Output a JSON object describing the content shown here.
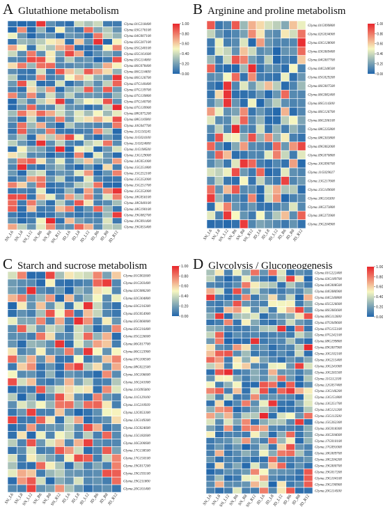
{
  "colors": {
    "low": "#2166ac",
    "mid": "#f7f7c0",
    "high": "#e8262c"
  },
  "color_scale": {
    "min": 0,
    "max": 1,
    "ticks": [
      "0.00",
      "0.20",
      "0.40",
      "0.60",
      "0.80",
      "1.00"
    ]
  },
  "samples": [
    "SN_L6",
    "SN_L8",
    "SN_L12",
    "SN_R6",
    "SN_R8",
    "SN_R12",
    "JD_L6",
    "JD_L8",
    "JD_L12",
    "JD_R6",
    "JD_R8",
    "JD_R12"
  ],
  "panels": [
    {
      "letter": "A",
      "title": "Glutathione metabolism",
      "genes": [
        "Glyma.01G218400",
        "Glyma.03G176100",
        "Glyma.04G007100",
        "Glyma.05G207100",
        "Glyma.05G240100",
        "Glyma.05G161600",
        "Glyma.05G114000",
        "Glyma.06G078400",
        "Glyma.06G114400",
        "Glyma.06G126700",
        "Glyma.07G140400",
        "Glyma.07G139700",
        "Glyma.07G139800",
        "Glyma.07G140700",
        "Glyma.07G139900",
        "Glyma.08G075200",
        "Glyma.08G116900",
        "Glyma.10G047700",
        "Glyma.11G150245",
        "Glyma.11G024100",
        "Glyma.11G024000",
        "Glyma.11G198500",
        "Glyma.13G129000",
        "Glyma.14G051000",
        "Glyma.15G251800",
        "Glyma.15G252100",
        "Glyma.15G252000",
        "Glyma.15G251700",
        "Glyma.15G252000",
        "Glyma.18G056100",
        "Glyma.18G040100",
        "Glyma.18G190100",
        "Glyma.19G082700",
        "Glyma.19G091400",
        "Glyma.19G055400"
      ]
    },
    {
      "letter": "B",
      "title": "Arginine and proline metabolism",
      "genes": [
        "Glyma.01G099800",
        "Glyma.02G034000",
        "Glyma.03G128000",
        "Glyma.03G069400",
        "Glyma.04G007700",
        "Glyma.04G248500",
        "Glyma.05G029200",
        "Glyma.06G007500",
        "Glyma.06G082400",
        "Glyma.06G114300",
        "Glyma.06G126700",
        "Glyma.06G206100",
        "Glyma.08G235800",
        "Glyma.08G303800",
        "Glyma.09G062000",
        "Glyma.09G070800",
        "Glyma.10G090700",
        "Glyma.11G029027",
        "Glyma.13G217600",
        "Glyma.15G149600",
        "Glyma.18G116300",
        "Glyma.18G273800",
        "Glyma.18G273900",
        "Glyma.19G204900"
      ]
    },
    {
      "letter": "C",
      "title": "Starch and sucrose metabolism",
      "genes": [
        "Glyma.01G002600",
        "Glyma.01G203400",
        "Glyma.02G086200",
        "Glyma.02G304800",
        "Glyma.03G216300",
        "Glyma.05G054900",
        "Glyma.05G060000",
        "Glyma.05G216400",
        "Glyma.05G226600",
        "Glyma.06G017700",
        "Glyma.06G123900",
        "Glyma.07G100500",
        "Glyma.08G022500",
        "Glyma.10G106600",
        "Glyma.10G241000",
        "Glyma.11G095600",
        "Glyma.11G129100",
        "Glyma.11G210939",
        "Glyma.12G053300",
        "Glyma.13G149300",
        "Glyma.15G024600",
        "Glyma.15G182600",
        "Glyma.16G200600",
        "Glyma.17G138500",
        "Glyma.17G150100",
        "Glyma.19G017200",
        "Glyma.19G193100",
        "Glyma.19G211800",
        "Glyma.20G101400"
      ]
    },
    {
      "letter": "D",
      "title": "Glycolysis / Gluconeogenesis",
      "genes": [
        "Glyma.01G222400",
        "Glyma.03G189700",
        "Glyma.04G008500",
        "Glyma.04G086900",
        "Glyma.04G240800",
        "Glyma.05G226600",
        "Glyma.06G083600",
        "Glyma.06G112600",
        "Glyma.07G049600",
        "Glyma.07G155100",
        "Glyma.07G242100",
        "Glyma.08G199800",
        "Glyma.09G007900",
        "Glyma.10G102100",
        "Glyma.10G215400",
        "Glyma.10G241000",
        "Glyma.10G265500",
        "Glyma.11G112100",
        "Glyma.12G057400",
        "Glyma.13G146200",
        "Glyma.13G151800",
        "Glyma.13G251700",
        "Glyma.14G121200",
        "Glyma.15G112500",
        "Glyma.15G262300",
        "Glyma.16G018300",
        "Glyma.16G204600",
        "Glyma.17G010100",
        "Glyma.17G091000",
        "Glyma.18G009700",
        "Glyma.18G204200",
        "Glyma.19G000700",
        "Glyma.19G017200",
        "Glyma.19G104100",
        "Glyma.19G190900",
        "Glyma.20G114500"
      ]
    }
  ]
}
